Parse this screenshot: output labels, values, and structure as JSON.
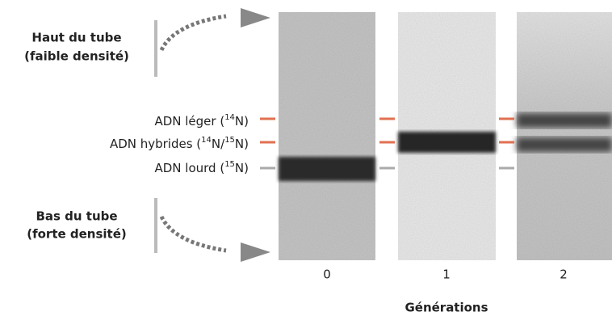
{
  "top_label": {
    "title": "Haut du tube",
    "subtitle": "(faible densité)"
  },
  "bottom_label": {
    "title": "Bas du tube",
    "subtitle": "(forte densité)"
  },
  "band_labels": [
    [
      "ADN léger (",
      "14",
      "N)"
    ],
    [
      "ADN hybrides (",
      "14",
      "N/",
      "15",
      "N)"
    ],
    [
      "ADN lourd (",
      "15",
      "N)"
    ]
  ],
  "lanes": [
    "0",
    "1",
    "2"
  ],
  "axis_title": "Générations"
}
